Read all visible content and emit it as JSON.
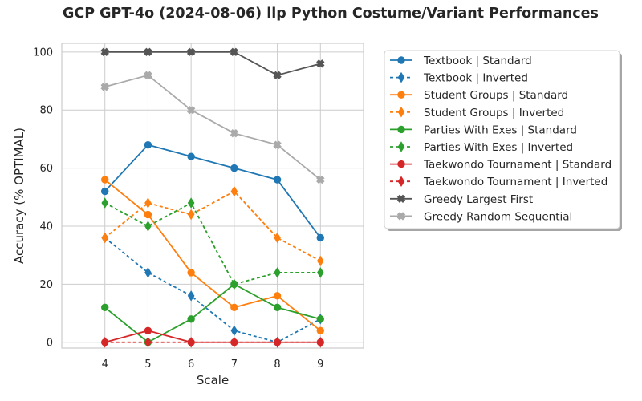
{
  "chart_data": {
    "type": "line",
    "title": "GCP GPT-4o (2024-08-06) llp Python Costume/Variant Performances",
    "xlabel": "Scale",
    "ylabel": "Accuracy (% OPTIMAL)",
    "x": [
      4,
      5,
      6,
      7,
      8,
      9
    ],
    "xlim": [
      3,
      10
    ],
    "ylim": [
      -2,
      103
    ],
    "xticks": [
      4,
      5,
      6,
      7,
      8,
      9
    ],
    "yticks": [
      0,
      20,
      40,
      60,
      80,
      100
    ],
    "grid": true,
    "legend_position": "outside-right-top",
    "series": [
      {
        "name": "Textbook | Standard",
        "values": [
          52,
          68,
          64,
          60,
          56,
          36
        ],
        "color": "#1f77b4",
        "dash": "solid",
        "marker": "circle"
      },
      {
        "name": "Textbook | Inverted",
        "values": [
          36,
          24,
          16,
          4,
          0,
          8
        ],
        "color": "#1f77b4",
        "dash": "dotted",
        "marker": "thin-diamond"
      },
      {
        "name": "Student Groups | Standard",
        "values": [
          56,
          44,
          24,
          12,
          16,
          4
        ],
        "color": "#ff7f0e",
        "dash": "solid",
        "marker": "circle"
      },
      {
        "name": "Student Groups | Inverted",
        "values": [
          36,
          48,
          44,
          52,
          36,
          28
        ],
        "color": "#ff7f0e",
        "dash": "dotted",
        "marker": "thin-diamond"
      },
      {
        "name": "Parties With Exes | Standard",
        "values": [
          12,
          0,
          8,
          20,
          12,
          8
        ],
        "color": "#2ca02c",
        "dash": "solid",
        "marker": "circle"
      },
      {
        "name": "Parties With Exes | Inverted",
        "values": [
          48,
          40,
          48,
          20,
          24,
          24
        ],
        "color": "#2ca02c",
        "dash": "dotted",
        "marker": "thin-diamond"
      },
      {
        "name": "Taekwondo Tournament | Standard",
        "values": [
          0,
          4,
          0,
          0,
          0,
          0
        ],
        "color": "#d62728",
        "dash": "solid",
        "marker": "circle"
      },
      {
        "name": "Taekwondo Tournament | Inverted",
        "values": [
          0,
          0,
          0,
          0,
          0,
          0
        ],
        "color": "#d62728",
        "dash": "dotted",
        "marker": "thin-diamond"
      },
      {
        "name": "Greedy Largest First",
        "values": [
          100,
          100,
          100,
          100,
          92,
          96
        ],
        "color": "#555555",
        "dash": "solid",
        "marker": "x"
      },
      {
        "name": "Greedy Random Sequential",
        "values": [
          88,
          92,
          80,
          72,
          68,
          56
        ],
        "color": "#aaaaaa",
        "dash": "solid",
        "marker": "x"
      }
    ]
  }
}
